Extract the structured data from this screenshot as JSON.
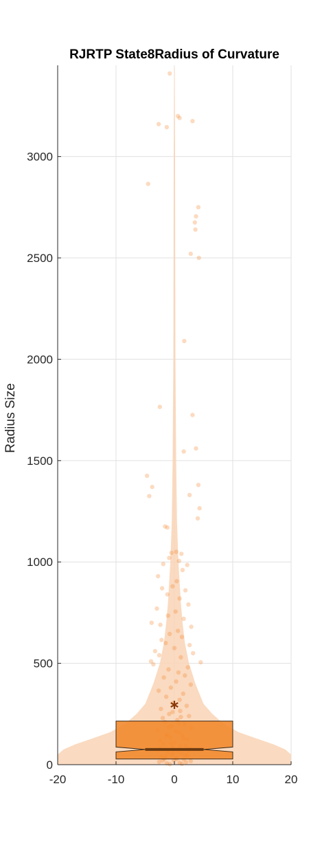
{
  "chart_data": {
    "type": "violin",
    "title": "RJRTP  State8Radius of Curvature",
    "xlabel": "",
    "ylabel": "Radius Size",
    "xlim": [
      -20,
      20
    ],
    "ylim": [
      0,
      3450
    ],
    "xticks": [
      -20,
      -10,
      0,
      10,
      20
    ],
    "yticks": [
      0,
      500,
      1000,
      1500,
      2000,
      2500,
      3000
    ],
    "grid": true,
    "colors": {
      "violin": "#f9d3b5",
      "box": "#f28a2e",
      "box_edge": "#3a2a1a",
      "median": "#6b3b12",
      "mean_marker": "#8a3a0a",
      "points": "#f47c20",
      "grid": "#e0e0e0",
      "axis": "#262626"
    },
    "box": {
      "x_center": 0,
      "half_width": 10,
      "q1": 28,
      "median": 75,
      "q3": 215,
      "notch_low": 63,
      "notch_high": 87
    },
    "mean": 295,
    "density_profile": [
      {
        "y": 0,
        "half_width": 20
      },
      {
        "y": 25,
        "half_width": 20
      },
      {
        "y": 50,
        "half_width": 20
      },
      {
        "y": 75,
        "half_width": 19
      },
      {
        "y": 100,
        "half_width": 17
      },
      {
        "y": 130,
        "half_width": 14
      },
      {
        "y": 160,
        "half_width": 11
      },
      {
        "y": 200,
        "half_width": 8.5
      },
      {
        "y": 250,
        "half_width": 6.5
      },
      {
        "y": 300,
        "half_width": 5
      },
      {
        "y": 400,
        "half_width": 3.6
      },
      {
        "y": 500,
        "half_width": 2.5
      },
      {
        "y": 600,
        "half_width": 1.8
      },
      {
        "y": 700,
        "half_width": 1.4
      },
      {
        "y": 800,
        "half_width": 1.1
      },
      {
        "y": 1000,
        "half_width": 0.7
      },
      {
        "y": 1200,
        "half_width": 0.45
      },
      {
        "y": 1500,
        "half_width": 0.3
      },
      {
        "y": 2000,
        "half_width": 0.18
      },
      {
        "y": 2500,
        "half_width": 0.14
      },
      {
        "y": 3000,
        "half_width": 0.12
      },
      {
        "y": 3440,
        "half_width": 0.05
      }
    ],
    "points": [
      {
        "x": -0.8,
        "y": 3410
      },
      {
        "x": 0.6,
        "y": 3200
      },
      {
        "x": 0.9,
        "y": 3190
      },
      {
        "x": -2.7,
        "y": 3160
      },
      {
        "x": 3.1,
        "y": 3175
      },
      {
        "x": -1.3,
        "y": 3145
      },
      {
        "x": -4.5,
        "y": 2865
      },
      {
        "x": 4.1,
        "y": 2750
      },
      {
        "x": 3.7,
        "y": 2705
      },
      {
        "x": 3.5,
        "y": 2675
      },
      {
        "x": 3.6,
        "y": 2640
      },
      {
        "x": 2.8,
        "y": 2520
      },
      {
        "x": 4.2,
        "y": 2500
      },
      {
        "x": 1.7,
        "y": 2090
      },
      {
        "x": -2.5,
        "y": 1765
      },
      {
        "x": 3.1,
        "y": 1725
      },
      {
        "x": 1.6,
        "y": 1545
      },
      {
        "x": 3.7,
        "y": 1560
      },
      {
        "x": -4.7,
        "y": 1425
      },
      {
        "x": -3.8,
        "y": 1370
      },
      {
        "x": 4.1,
        "y": 1380
      },
      {
        "x": -4.3,
        "y": 1325
      },
      {
        "x": 2.6,
        "y": 1330
      },
      {
        "x": 4.3,
        "y": 1265
      },
      {
        "x": 4.0,
        "y": 1215
      },
      {
        "x": -1.6,
        "y": 1175
      },
      {
        "x": -1.2,
        "y": 1170
      },
      {
        "x": 0.3,
        "y": 1050
      },
      {
        "x": -0.5,
        "y": 1045
      },
      {
        "x": 1.2,
        "y": 1040
      },
      {
        "x": -0.9,
        "y": 1020
      },
      {
        "x": 0.8,
        "y": 1005
      },
      {
        "x": -1.9,
        "y": 990
      },
      {
        "x": 2.2,
        "y": 985
      },
      {
        "x": 1.4,
        "y": 960
      },
      {
        "x": -2.8,
        "y": 930
      },
      {
        "x": 0.4,
        "y": 905
      },
      {
        "x": -0.3,
        "y": 880
      },
      {
        "x": -2.1,
        "y": 870
      },
      {
        "x": 1.9,
        "y": 860
      },
      {
        "x": -1.2,
        "y": 840
      },
      {
        "x": 0.9,
        "y": 820
      },
      {
        "x": 2.4,
        "y": 790
      },
      {
        "x": -3.0,
        "y": 770
      },
      {
        "x": 0.2,
        "y": 755
      },
      {
        "x": -1.1,
        "y": 735
      },
      {
        "x": 1.6,
        "y": 720
      },
      {
        "x": -3.9,
        "y": 700
      },
      {
        "x": -2.4,
        "y": 690
      },
      {
        "x": 2.9,
        "y": 680
      },
      {
        "x": 0.6,
        "y": 660
      },
      {
        "x": -0.8,
        "y": 645
      },
      {
        "x": 1.3,
        "y": 630
      },
      {
        "x": -2.2,
        "y": 615
      },
      {
        "x": -1.5,
        "y": 600
      },
      {
        "x": 2.6,
        "y": 590
      },
      {
        "x": 0.0,
        "y": 575
      },
      {
        "x": -3.3,
        "y": 560
      },
      {
        "x": 3.2,
        "y": 550
      },
      {
        "x": -2.6,
        "y": 540
      },
      {
        "x": 1.1,
        "y": 530
      },
      {
        "x": -4.0,
        "y": 510
      },
      {
        "x": 4.5,
        "y": 505
      },
      {
        "x": -3.6,
        "y": 495
      },
      {
        "x": 2.3,
        "y": 480
      },
      {
        "x": -1.0,
        "y": 470
      },
      {
        "x": 0.7,
        "y": 455
      },
      {
        "x": 1.8,
        "y": 440
      },
      {
        "x": -1.8,
        "y": 430
      },
      {
        "x": 0.3,
        "y": 410
      },
      {
        "x": 2.8,
        "y": 395
      },
      {
        "x": -0.6,
        "y": 380
      },
      {
        "x": -2.7,
        "y": 365
      },
      {
        "x": 1.5,
        "y": 350
      },
      {
        "x": -1.4,
        "y": 335
      },
      {
        "x": 0.9,
        "y": 320
      },
      {
        "x": -0.2,
        "y": 305
      },
      {
        "x": 2.1,
        "y": 290
      },
      {
        "x": -2.3,
        "y": 275
      },
      {
        "x": 1.0,
        "y": 265
      },
      {
        "x": -0.9,
        "y": 250
      },
      {
        "x": 2.5,
        "y": 240
      },
      {
        "x": -2.0,
        "y": 230
      },
      {
        "x": 0.5,
        "y": 220
      },
      {
        "x": -1.6,
        "y": 210
      },
      {
        "x": 1.7,
        "y": 200
      },
      {
        "x": -0.4,
        "y": 190
      },
      {
        "x": 2.9,
        "y": 180
      },
      {
        "x": -2.9,
        "y": 170
      },
      {
        "x": 0.8,
        "y": 160
      },
      {
        "x": -1.2,
        "y": 150
      },
      {
        "x": 1.4,
        "y": 145
      },
      {
        "x": -0.7,
        "y": 135
      },
      {
        "x": 2.2,
        "y": 125
      },
      {
        "x": -2.5,
        "y": 118
      },
      {
        "x": 0.1,
        "y": 110
      },
      {
        "x": -1.9,
        "y": 102
      },
      {
        "x": 1.9,
        "y": 95
      },
      {
        "x": -0.3,
        "y": 88
      },
      {
        "x": 2.6,
        "y": 80
      },
      {
        "x": -2.8,
        "y": 72
      },
      {
        "x": 0.6,
        "y": 66
      },
      {
        "x": -1.1,
        "y": 60
      },
      {
        "x": 1.2,
        "y": 55
      },
      {
        "x": -0.5,
        "y": 50
      },
      {
        "x": 2.3,
        "y": 45
      },
      {
        "x": -2.2,
        "y": 40
      },
      {
        "x": 0.3,
        "y": 35
      },
      {
        "x": -1.7,
        "y": 30
      },
      {
        "x": 1.6,
        "y": 26
      },
      {
        "x": -0.1,
        "y": 22
      },
      {
        "x": 2.8,
        "y": 18
      },
      {
        "x": -2.6,
        "y": 14
      },
      {
        "x": 0.9,
        "y": 10
      },
      {
        "x": -1.3,
        "y": 7
      },
      {
        "x": 1.3,
        "y": 4
      },
      {
        "x": -0.8,
        "y": 2
      },
      {
        "x": 2.0,
        "y": 12
      },
      {
        "x": -2.0,
        "y": 20
      },
      {
        "x": 0.4,
        "y": 28
      },
      {
        "x": -1.5,
        "y": 38
      },
      {
        "x": 1.8,
        "y": 48
      },
      {
        "x": -0.2,
        "y": 58
      },
      {
        "x": 2.4,
        "y": 68
      },
      {
        "x": -2.4,
        "y": 78
      },
      {
        "x": 1.0,
        "y": 92
      },
      {
        "x": -0.6,
        "y": 105
      },
      {
        "x": 1.5,
        "y": 128
      },
      {
        "x": -1.4,
        "y": 140
      },
      {
        "x": 0.2,
        "y": 165
      },
      {
        "x": -1.0,
        "y": 185
      },
      {
        "x": 0.7,
        "y": 205
      },
      {
        "x": 1.1,
        "y": 235
      },
      {
        "x": -0.3,
        "y": 260
      }
    ]
  }
}
